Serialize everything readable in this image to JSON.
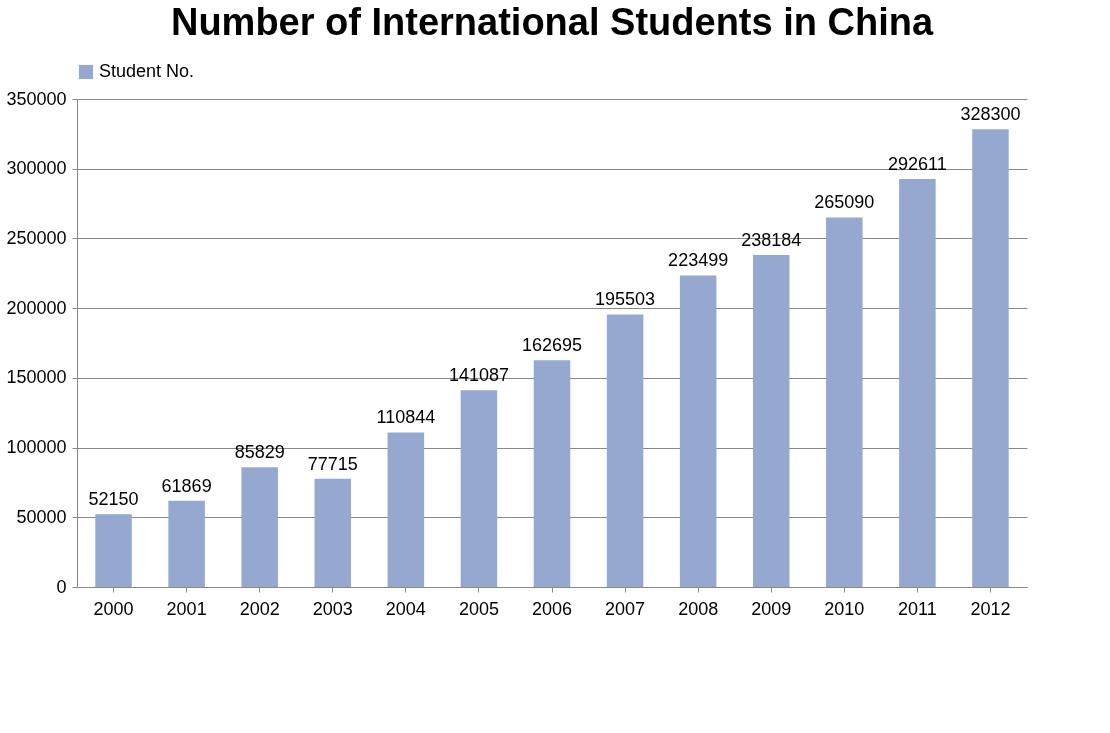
{
  "chart_data": {
    "type": "bar",
    "title": "Number of International Students in China",
    "categories": [
      "2000",
      "2001",
      "2002",
      "2003",
      "2004",
      "2005",
      "2006",
      "2007",
      "2008",
      "2009",
      "2010",
      "2011",
      "2012"
    ],
    "series": [
      {
        "name": "Student No.",
        "color": "#95a9d0",
        "values": [
          52150,
          61869,
          85829,
          77715,
          110844,
          141087,
          162695,
          195503,
          223499,
          238184,
          265090,
          292611,
          328300
        ]
      }
    ],
    "ylim": [
      0,
      350000
    ],
    "yticks": [
      0,
      50000,
      100000,
      150000,
      200000,
      250000,
      300000,
      350000
    ],
    "grid": "y",
    "legend": "top",
    "data_labels": true
  }
}
